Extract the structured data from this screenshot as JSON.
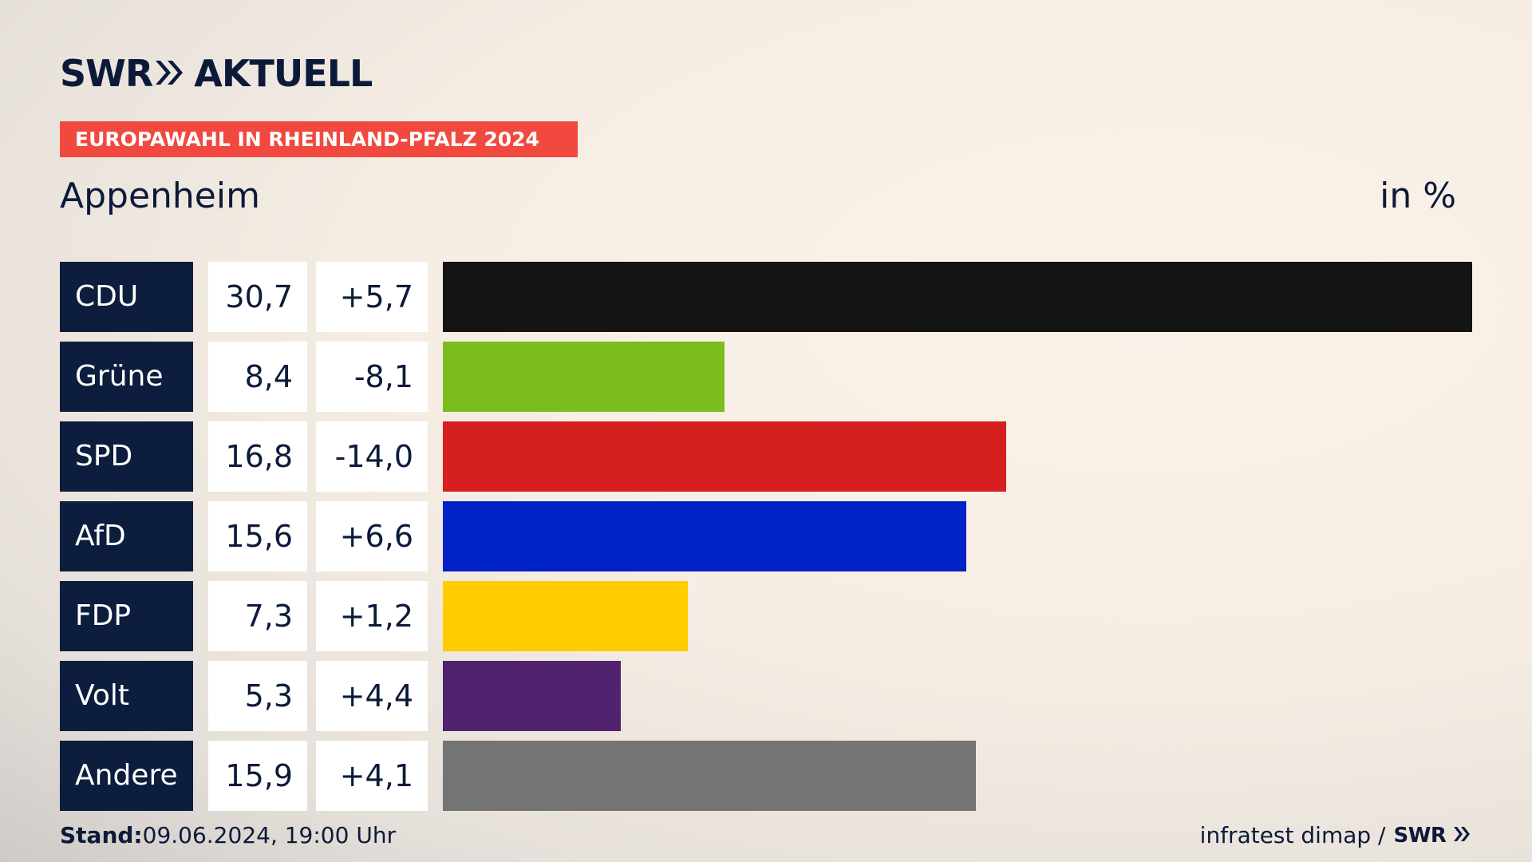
{
  "header": {
    "logo_text_left": "SWR",
    "logo_text_right": "AKTUELL",
    "tag": "EUROPAWAHL IN RHEINLAND-PFALZ 2024",
    "place": "Appenheim",
    "unit": "in %"
  },
  "colors": {
    "navy": "#0c1d3d",
    "tag_red": "#f1493f"
  },
  "chart_data": {
    "type": "bar",
    "orientation": "horizontal",
    "categories": [
      "CDU",
      "Grüne",
      "SPD",
      "AfD",
      "FDP",
      "Volt",
      "Andere"
    ],
    "values": [
      30.7,
      8.4,
      16.8,
      15.6,
      7.3,
      5.3,
      15.9
    ],
    "value_labels": [
      "30,7",
      "8,4",
      "16,8",
      "15,6",
      "7,3",
      "5,3",
      "15,9"
    ],
    "diff_labels": [
      "+5,7",
      "-8,1",
      "-14,0",
      "+6,6",
      "+1,2",
      "+4,4",
      "+4,1"
    ],
    "diffs": [
      5.7,
      -8.1,
      -14.0,
      6.6,
      1.2,
      4.4,
      4.1
    ],
    "colors": [
      "#141414",
      "#7bbd1c",
      "#d61f1f",
      "#0022c7",
      "#ffcc00",
      "#51236f",
      "#747474"
    ],
    "xlim": [
      0,
      30.7
    ],
    "grid": false,
    "legend": "none"
  },
  "footer": {
    "stand_label": "Stand:",
    "stand_value": "09.06.2024, 19:00 Uhr",
    "source": "infratest dimap /",
    "source_logo": "SWR"
  }
}
